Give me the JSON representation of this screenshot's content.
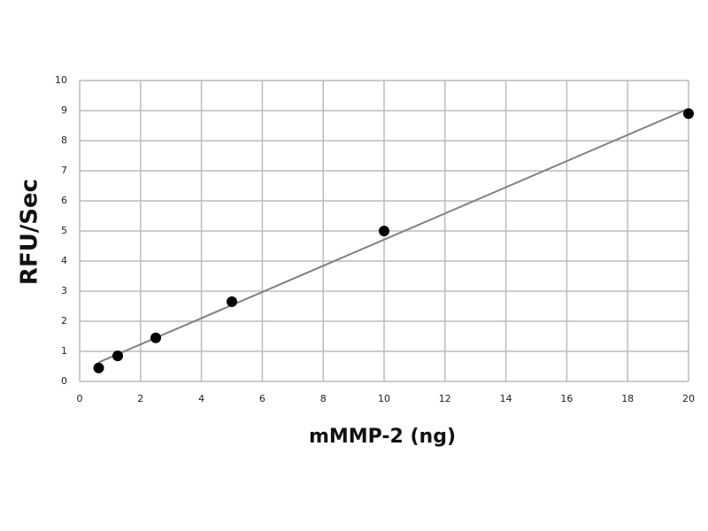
{
  "chart_data": {
    "type": "scatter",
    "x_label": "mMMP-2 (ng)",
    "y_label": "RFU/Sec",
    "x": [
      0.625,
      1.25,
      2.5,
      5,
      10,
      20
    ],
    "values": [
      0.45,
      0.85,
      1.45,
      2.65,
      5.0,
      8.9
    ],
    "color": "#000000",
    "trendline": true,
    "trendline_color": "#808080",
    "xlim": [
      0,
      20
    ],
    "xticks": [
      0,
      2,
      4,
      6,
      8,
      10,
      12,
      14,
      16,
      18,
      20
    ],
    "ylim": [
      0,
      10
    ],
    "yticks": [
      0,
      1,
      2,
      3,
      4,
      5,
      6,
      7,
      8,
      9,
      10
    ],
    "grid": true
  }
}
